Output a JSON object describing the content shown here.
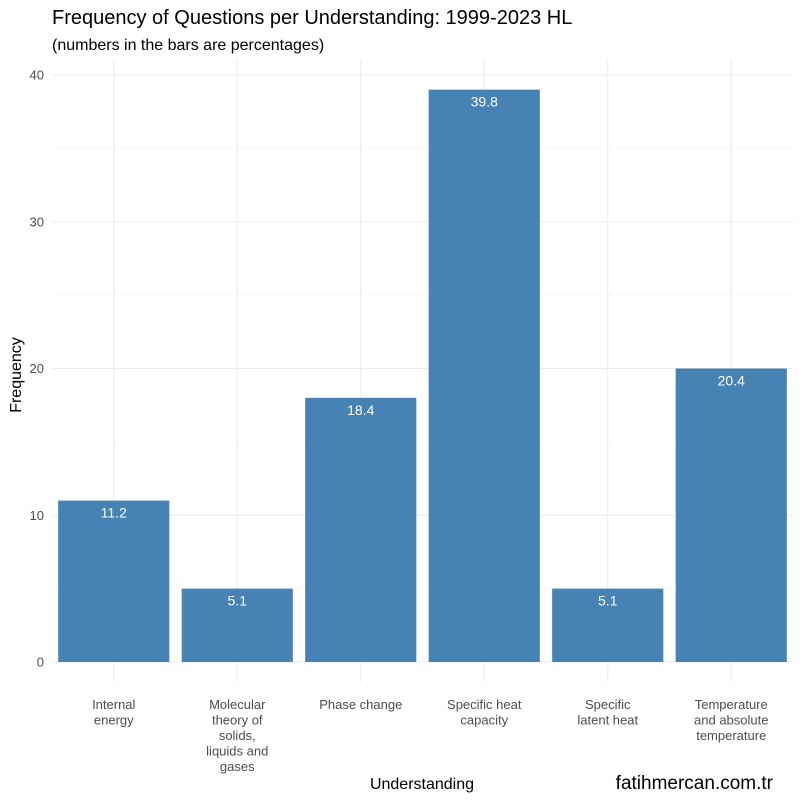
{
  "title": "Frequency of Questions per Understanding: 1999-2023 HL",
  "subtitle": "(numbers in the bars are percentages)",
  "caption": "fatihmercan.com.tr",
  "colors": {
    "bar": "#4682B4",
    "bar_label": "#ffffff",
    "grid": "#ebebeb",
    "tick": "#4d4d4d"
  },
  "chart_data": {
    "type": "bar",
    "categories": [
      [
        "Internal",
        "energy"
      ],
      [
        "Molecular",
        "theory of",
        "solids,",
        "liquids and",
        "gases"
      ],
      [
        "Phase change"
      ],
      [
        "Specific heat",
        "capacity"
      ],
      [
        "Specific",
        "latent heat"
      ],
      [
        "Temperature",
        "and absolute",
        "temperature"
      ]
    ],
    "values": [
      11,
      5,
      18,
      39,
      5,
      20
    ],
    "bar_labels": [
      "11.2",
      "5.1",
      "18.4",
      "39.8",
      "5.1",
      "20.4"
    ],
    "xlabel": "Understanding",
    "ylabel": "Frequency",
    "ylim": [
      0,
      40
    ],
    "yticks": [
      0,
      10,
      20,
      30,
      40
    ],
    "grid": true
  }
}
